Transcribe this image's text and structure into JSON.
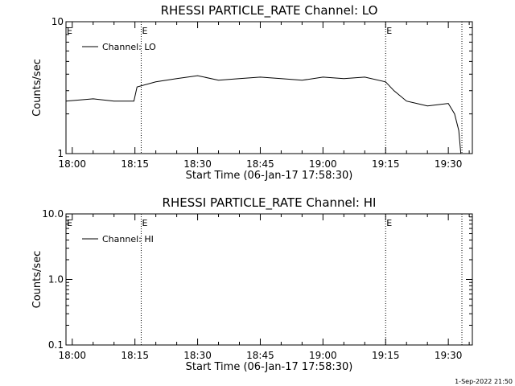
{
  "chart_data": [
    {
      "type": "line",
      "title": "RHESSI PARTICLE_RATE Channel: LO",
      "xlabel": "Start Time (06-Jan-17 17:58:30)",
      "ylabel": "Counts/sec",
      "yscale": "log",
      "ylim": [
        1,
        10
      ],
      "xlim": [
        "17:58:30",
        "19:35:45"
      ],
      "ytick_labels": [
        "1",
        "10"
      ],
      "xtick_labels": [
        "18:00",
        "18:15",
        "18:30",
        "18:45",
        "19:00",
        "19:15",
        "19:30"
      ],
      "legend": "Channel: LO",
      "legend_location": "top-left",
      "event_marker": "E",
      "event_lines": [
        "18:16:30",
        "19:15:00",
        "19:33:15"
      ],
      "series": [
        {
          "name": "Channel: LO",
          "x": [
            "17:58:30",
            "18:05:00",
            "18:10:00",
            "18:14:45",
            "18:15:30",
            "18:20:00",
            "18:25:00",
            "18:30:00",
            "18:35:00",
            "18:40:00",
            "18:45:00",
            "18:50:00",
            "18:55:00",
            "19:00:00",
            "19:05:00",
            "19:10:00",
            "19:15:00",
            "19:17:00",
            "19:20:00",
            "19:25:00",
            "19:30:00",
            "19:31:30",
            "19:32:30",
            "19:33:00"
          ],
          "y": [
            2.5,
            2.6,
            2.5,
            2.5,
            3.2,
            3.5,
            3.7,
            3.9,
            3.6,
            3.7,
            3.8,
            3.7,
            3.6,
            3.8,
            3.7,
            3.8,
            3.5,
            3.0,
            2.5,
            2.3,
            2.4,
            2.0,
            1.5,
            1.0
          ]
        }
      ]
    },
    {
      "type": "line",
      "title": "RHESSI PARTICLE_RATE Channel: HI",
      "xlabel": "Start Time (06-Jan-17 17:58:30)",
      "ylabel": "Counts/sec",
      "yscale": "log",
      "ylim": [
        0.1,
        10
      ],
      "xlim": [
        "17:58:30",
        "19:35:45"
      ],
      "ytick_labels": [
        "0.1",
        "1.0",
        "10.0"
      ],
      "xtick_labels": [
        "18:00",
        "18:15",
        "18:30",
        "18:45",
        "19:00",
        "19:15",
        "19:30"
      ],
      "legend": "Channel: HI",
      "legend_location": "top-left",
      "event_marker": "E",
      "event_lines": [
        "18:16:30",
        "19:15:00",
        "19:33:15"
      ],
      "series": [
        {
          "name": "Channel: HI",
          "x": [],
          "y": []
        }
      ]
    }
  ],
  "timestamp": "1-Sep-2022 21:50",
  "colors": {
    "background": "#ffffff",
    "ink": "#000000"
  }
}
